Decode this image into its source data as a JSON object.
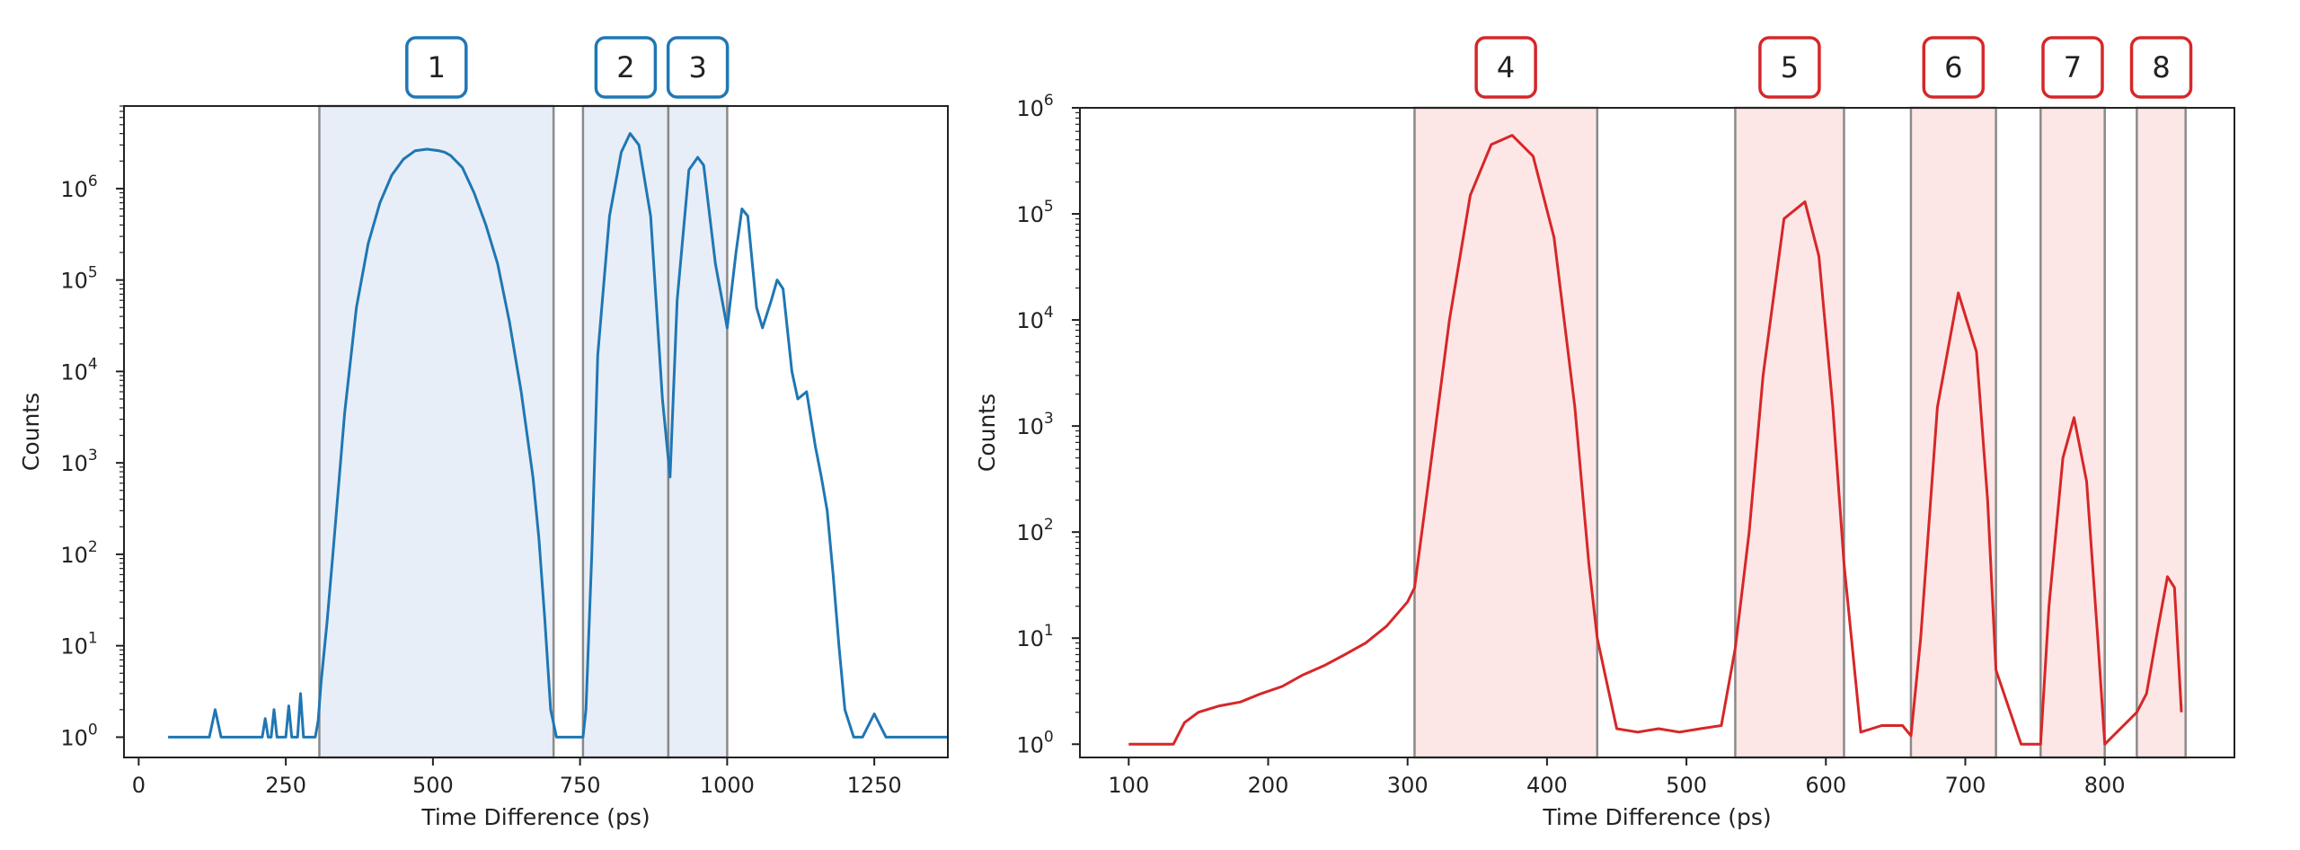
{
  "chart_data": [
    {
      "type": "line",
      "scale_y": "log",
      "xlabel": "Time Difference (ps)",
      "ylabel": "Counts",
      "xlim": [
        -25,
        1375
      ],
      "ylim": [
        0.6,
        8000000
      ],
      "x_ticks": [
        0,
        250,
        500,
        750,
        1000,
        1250
      ],
      "y_ticks": [
        {
          "base": "10",
          "exp": "0",
          "value": 1
        },
        {
          "base": "10",
          "exp": "1",
          "value": 10
        },
        {
          "base": "10",
          "exp": "2",
          "value": 100
        },
        {
          "base": "10",
          "exp": "3",
          "value": 1000
        },
        {
          "base": "10",
          "exp": "4",
          "value": 10000
        },
        {
          "base": "10",
          "exp": "5",
          "value": 100000
        },
        {
          "base": "10",
          "exp": "6",
          "value": 1000000
        }
      ],
      "color": "#1f77b4",
      "region_fill": "#e8eef7",
      "region_border": "#1f77b4",
      "regions": [
        {
          "label": "1",
          "x0": 307,
          "x1": 705
        },
        {
          "label": "2",
          "x0": 755,
          "x1": 900
        },
        {
          "label": "3",
          "x0": 900,
          "x1": 1000
        }
      ],
      "series": [
        {
          "name": "histogram",
          "x": [
            50,
            120,
            130,
            140,
            210,
            215,
            220,
            225,
            230,
            235,
            250,
            255,
            260,
            270,
            275,
            280,
            300,
            305,
            310,
            320,
            330,
            340,
            350,
            370,
            390,
            410,
            430,
            450,
            470,
            490,
            510,
            520,
            530,
            550,
            570,
            590,
            610,
            630,
            650,
            670,
            680,
            690,
            700,
            710,
            730,
            755,
            760,
            770,
            780,
            800,
            820,
            835,
            850,
            870,
            890,
            903,
            915,
            935,
            950,
            960,
            980,
            1000,
            1015,
            1025,
            1035,
            1050,
            1060,
            1075,
            1085,
            1095,
            1110,
            1120,
            1135,
            1150,
            1160,
            1170,
            1180,
            1190,
            1200,
            1215,
            1230,
            1250,
            1270,
            1280,
            1300,
            1320,
            1375
          ],
          "y": [
            1,
            1,
            2,
            1,
            1,
            1.6,
            1,
            1,
            2,
            1,
            1,
            2.2,
            1,
            1,
            3,
            1,
            1,
            1.5,
            4,
            18,
            100,
            600,
            3500,
            50000,
            250000,
            700000,
            1400000,
            2100000,
            2600000,
            2700000,
            2600000,
            2500000,
            2300000,
            1700000,
            900000,
            400000,
            150000,
            35000,
            6000,
            700,
            150,
            20,
            2,
            1,
            1,
            1,
            2,
            100,
            15000,
            500000,
            2500000,
            4000000,
            3000000,
            500000,
            5000,
            700,
            60000,
            1600000,
            2200000,
            1800000,
            150000,
            30000,
            200000,
            600000,
            500000,
            50000,
            30000,
            60000,
            100000,
            80000,
            10000,
            5000,
            6000,
            1500,
            700,
            300,
            60,
            10,
            2,
            1,
            1,
            1.8,
            1,
            1,
            1,
            1,
            1
          ]
        }
      ]
    },
    {
      "type": "line",
      "scale_y": "log",
      "xlabel": "Time Difference (ps)",
      "ylabel": "Counts",
      "xlim": [
        65,
        893
      ],
      "ylim": [
        0.75,
        1000000
      ],
      "x_ticks": [
        100,
        200,
        300,
        400,
        500,
        600,
        700,
        800
      ],
      "y_ticks": [
        {
          "base": "10",
          "exp": "0",
          "value": 1
        },
        {
          "base": "10",
          "exp": "1",
          "value": 10
        },
        {
          "base": "10",
          "exp": "2",
          "value": 100
        },
        {
          "base": "10",
          "exp": "3",
          "value": 1000
        },
        {
          "base": "10",
          "exp": "4",
          "value": 10000
        },
        {
          "base": "10",
          "exp": "5",
          "value": 100000
        },
        {
          "base": "10",
          "exp": "6",
          "value": 1000000
        }
      ],
      "color": "#d62728",
      "region_fill": "#fde6e6",
      "region_border": "#d62728",
      "regions": [
        {
          "label": "4",
          "x0": 305,
          "x1": 436
        },
        {
          "label": "5",
          "x0": 535,
          "x1": 613
        },
        {
          "label": "6",
          "x0": 661,
          "x1": 722
        },
        {
          "label": "7",
          "x0": 754,
          "x1": 800
        },
        {
          "label": "8",
          "x0": 823,
          "x1": 858
        }
      ],
      "series": [
        {
          "name": "histogram",
          "x": [
            100,
            132,
            140,
            150,
            165,
            180,
            195,
            210,
            225,
            240,
            255,
            270,
            285,
            300,
            305,
            315,
            330,
            345,
            360,
            375,
            390,
            405,
            420,
            430,
            436,
            450,
            465,
            480,
            495,
            510,
            525,
            535,
            545,
            555,
            570,
            585,
            595,
            605,
            613,
            625,
            640,
            655,
            661,
            668,
            680,
            695,
            708,
            716,
            722,
            740,
            754,
            760,
            770,
            778,
            787,
            795,
            800,
            823,
            830,
            838,
            845,
            850,
            855
          ],
          "y": [
            1,
            1,
            1.6,
            2,
            2.3,
            2.5,
            3,
            3.5,
            4.5,
            5.5,
            7,
            9,
            13,
            22,
            30,
            300,
            10000,
            150000,
            450000,
            550000,
            350000,
            60000,
            1500,
            50,
            10,
            1.4,
            1.3,
            1.4,
            1.3,
            1.4,
            1.5,
            8,
            100,
            3000,
            90000,
            130000,
            40000,
            1500,
            50,
            1.3,
            1.5,
            1.5,
            1.2,
            10,
            1500,
            18000,
            5000,
            200,
            5,
            1,
            1,
            20,
            500,
            1200,
            300,
            10,
            1,
            2,
            3,
            12,
            38,
            30,
            2
          ]
        }
      ]
    }
  ]
}
